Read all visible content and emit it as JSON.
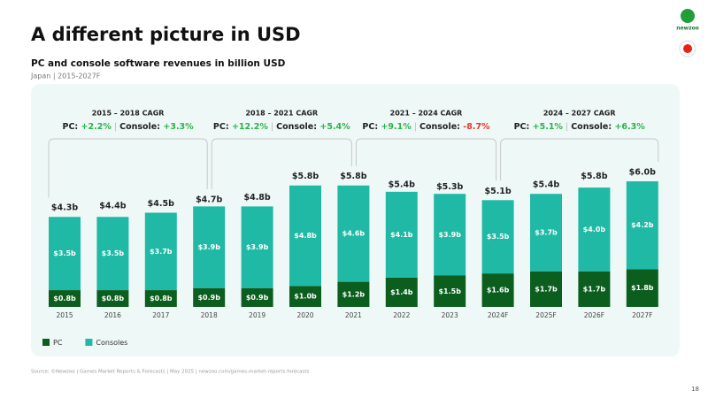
{
  "header": {
    "title": "A different picture in USD",
    "subtitle": "PC and console software revenues in billion USD",
    "meta": "Japan | 2015-2027F",
    "logo": "newzoo"
  },
  "chart_data": {
    "type": "stacked_bar",
    "categories": [
      "2015",
      "2016",
      "2017",
      "2018",
      "2019",
      "2020",
      "2021",
      "2022",
      "2023",
      "2024F",
      "2025F",
      "2026F",
      "2027F"
    ],
    "series": [
      {
        "name": "PC",
        "color": "#0b5e1e",
        "values": [
          0.8,
          0.8,
          0.8,
          0.9,
          0.9,
          1.0,
          1.2,
          1.4,
          1.5,
          1.6,
          1.7,
          1.7,
          1.8
        ],
        "value_labels": [
          "$0.8b",
          "$0.8b",
          "$0.8b",
          "$0.9b",
          "$0.9b",
          "$1.0b",
          "$1.2b",
          "$1.4b",
          "$1.5b",
          "$1.6b",
          "$1.7b",
          "$1.7b",
          "$1.8b"
        ]
      },
      {
        "name": "Consoles",
        "color": "#20b9a5",
        "values": [
          3.5,
          3.5,
          3.7,
          3.9,
          3.9,
          4.8,
          4.6,
          4.1,
          3.9,
          3.5,
          3.7,
          4.0,
          4.2
        ],
        "value_labels": [
          "$3.5b",
          "$3.5b",
          "$3.7b",
          "$3.9b",
          "$3.9b",
          "$4.8b",
          "$4.6b",
          "$4.1b",
          "$3.9b",
          "$3.5b",
          "$3.7b",
          "$4.0b",
          "$4.2b"
        ]
      }
    ],
    "totals": {
      "values": [
        4.3,
        4.4,
        4.5,
        4.7,
        4.8,
        5.8,
        5.8,
        5.4,
        5.3,
        5.1,
        5.4,
        5.8,
        6.0
      ],
      "value_labels": [
        "$4.3b",
        "$4.4b",
        "$4.5b",
        "$4.7b",
        "$4.8b",
        "$5.8b",
        "$5.8b",
        "$5.4b",
        "$5.3b",
        "$5.1b",
        "$5.4b",
        "$5.8b",
        "$6.0b"
      ]
    },
    "cagr_labels": {
      "pc": "PC:",
      "console": "Console:"
    },
    "annotations": [
      {
        "title": "2015 – 2018 CAGR",
        "pc": "+2.2%",
        "console": "+3.3%"
      },
      {
        "title": "2018 – 2021 CAGR",
        "pc": "+12.2%",
        "console": "+5.4%"
      },
      {
        "title": "2021 – 2024 CAGR",
        "pc": "+9.1%",
        "console": "-8.7%"
      },
      {
        "title": "2024 – 2027 CAGR",
        "pc": "+5.1%",
        "console": "+6.3%"
      }
    ],
    "legend": "bottom-left"
  },
  "footer": {
    "source": "Source: ©Newzoo | Games Market Reports & Forecasts | May 2025 | newzoo.com/games-market-reports-forecasts",
    "page": "18"
  }
}
